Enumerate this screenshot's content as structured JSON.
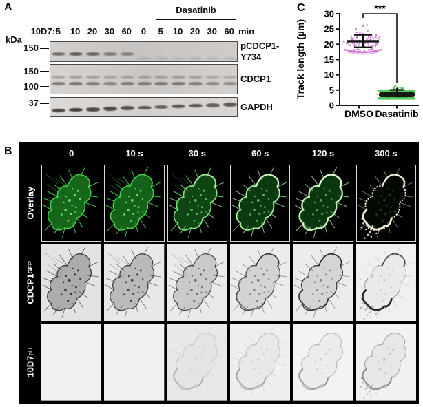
{
  "panel_a": {
    "label": "A",
    "treatment": "Dasatinib",
    "series_label": "10D7:",
    "lane_times": [
      "5",
      "10",
      "20",
      "30",
      "60",
      "0",
      "5",
      "10",
      "20",
      "30",
      "60"
    ],
    "time_unit": "min",
    "unit_label": "kDa",
    "blots": [
      {
        "id": "pcdcp1",
        "label_lines": [
          "pCDCP1-",
          "Y734"
        ],
        "markers": [
          {
            "kda": "150",
            "frac": 0.33
          }
        ],
        "band_intensities": [
          0.6,
          0.7,
          0.65,
          0.5,
          0.45,
          0.12,
          0.1,
          0.1,
          0.12,
          0.1,
          0.12
        ]
      },
      {
        "id": "cdcp1",
        "label_lines": [
          "CDCP1"
        ],
        "markers": [
          {
            "kda": "150",
            "frac": 0.25
          },
          {
            "kda": "100",
            "frac": 0.75
          }
        ],
        "band_intensities": [
          0.5,
          0.55,
          0.5,
          0.45,
          0.5,
          0.5,
          0.52,
          0.55,
          0.5,
          0.42,
          0.4
        ]
      },
      {
        "id": "gapdh",
        "label_lines": [
          "GAPDH"
        ],
        "markers": [
          {
            "kda": "37",
            "frac": 0.3
          }
        ],
        "band_intensities": [
          0.85,
          0.9,
          0.85,
          0.85,
          0.8,
          0.75,
          0.7,
          0.75,
          0.75,
          0.7,
          0.75
        ]
      }
    ]
  },
  "panel_b": {
    "label": "B",
    "time_labels": [
      "0",
      "10 s",
      "30 s",
      "60 s",
      "120 s",
      "300 s"
    ],
    "rows": [
      {
        "label": "Overlay",
        "sup": "",
        "style": "overlay",
        "signal_trend": [
          0.75,
          0.7,
          0.5,
          0.42,
          0.4,
          0.06
        ]
      },
      {
        "label": "CDCP1",
        "sup": "GFP",
        "style": "gfp",
        "signal_trend": [
          0.4,
          0.32,
          0.22,
          0.16,
          0.15,
          0.04
        ]
      },
      {
        "label": "10D7",
        "sup": "pH",
        "style": "ph",
        "signal_trend": [
          0,
          0,
          0.3,
          0.45,
          0.55,
          0.7
        ]
      }
    ]
  },
  "panel_c": {
    "label": "C"
  },
  "chart_data": {
    "type": "scatter",
    "title": "",
    "ylabel": "Track length (µm)",
    "ylim": [
      0,
      30
    ],
    "yticks": [
      0,
      5,
      10,
      15,
      20,
      25,
      30
    ],
    "categories": [
      "DMSO",
      "Dasatinib"
    ],
    "groups": [
      {
        "label": "DMSO",
        "color": "#c95fcf",
        "mean": 21.0,
        "sd": 2.1,
        "n": 85,
        "min": 17.6,
        "max": 28.3
      },
      {
        "label": "Dasatinib",
        "color": "#2fbe3a",
        "mean": 3.8,
        "sd": 1.0,
        "n": 95,
        "min": 2.7,
        "max": 9.0
      }
    ],
    "error_bars": "mean ± SD",
    "significance": "***",
    "legend": "none",
    "grid": "off"
  }
}
